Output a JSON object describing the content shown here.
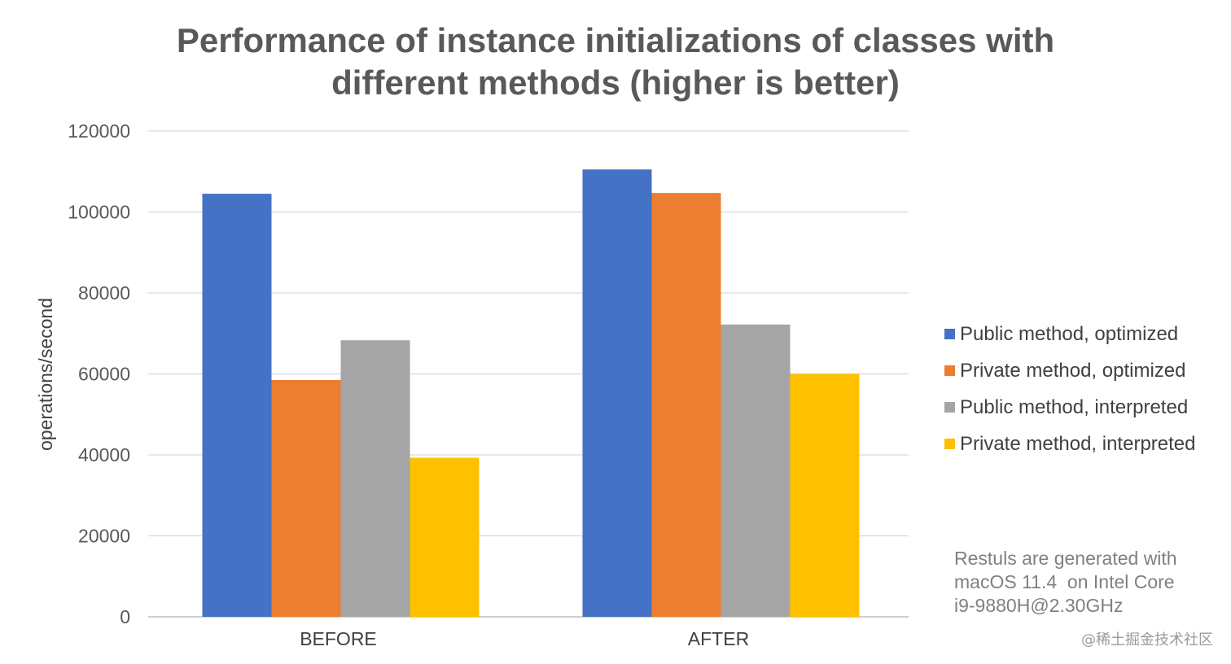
{
  "chart_data": {
    "type": "bar",
    "title_lines": [
      "Performance of instance initializations of classes with",
      "different methods (higher is better)"
    ],
    "xlabel": "",
    "ylabel": "operations/second",
    "ylim": [
      0,
      120000
    ],
    "yticks": [
      0,
      20000,
      40000,
      60000,
      80000,
      100000,
      120000
    ],
    "grid": true,
    "legend_position": "right",
    "categories": [
      "BEFORE",
      "AFTER"
    ],
    "series": [
      {
        "name": "Public method, optimized",
        "color": "#4472C4",
        "values": [
          104500,
          110500
        ]
      },
      {
        "name": "Private method, optimized",
        "color": "#ED7D31",
        "values": [
          58500,
          104700
        ]
      },
      {
        "name": "Public method, interpreted",
        "color": "#A5A5A5",
        "values": [
          68300,
          72200
        ]
      },
      {
        "name": "Private method, interpreted",
        "color": "#FFC000",
        "values": [
          39300,
          60000
        ]
      }
    ]
  },
  "note_lines": [
    "Restuls are generated with",
    "macOS 11.4  on Intel Core",
    "i9-9880H@2.30GHz"
  ],
  "watermark": "@稀土掘金技术社区"
}
